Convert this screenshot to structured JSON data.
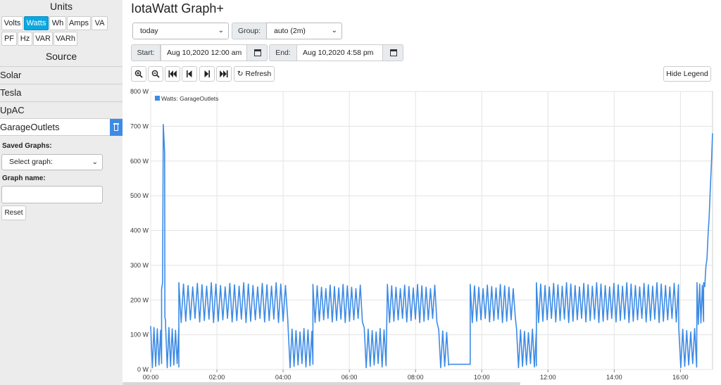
{
  "sidebar": {
    "units_title": "Units",
    "units": [
      {
        "label": "Volts",
        "active": false
      },
      {
        "label": "Watts",
        "active": true
      },
      {
        "label": "Wh",
        "active": false
      },
      {
        "label": "Amps",
        "active": false
      },
      {
        "label": "VA",
        "active": false
      },
      {
        "label": "PF",
        "active": false
      },
      {
        "label": "Hz",
        "active": false
      },
      {
        "label": "VAR",
        "active": false
      },
      {
        "label": "VARh",
        "active": false
      }
    ],
    "source_title": "Source",
    "sources": [
      {
        "label": "Solar",
        "selected": false
      },
      {
        "label": "Tesla",
        "selected": false
      },
      {
        "label": "UpAC",
        "selected": false
      },
      {
        "label": "GarageOutlets",
        "selected": true
      }
    ],
    "saved_graphs_label": "Saved Graphs:",
    "saved_graphs_value": "Select graph:",
    "graph_name_label": "Graph name:",
    "graph_name_value": "",
    "reset_label": "Reset"
  },
  "header": {
    "title": "IotaWatt Graph+",
    "period_value": "today",
    "group_label": "Group:",
    "group_value": "auto (2m)",
    "start_label": "Start:",
    "start_value": "Aug 10,2020 12:00 am",
    "end_label": "End:",
    "end_value": "Aug 10,2020 4:58 pm"
  },
  "toolbar": {
    "zoom_in_icon": "zoom-in-icon",
    "zoom_out_icon": "zoom-out-icon",
    "first_icon": "skip-to-start-icon",
    "prev_icon": "step-back-icon",
    "next_icon": "step-forward-icon",
    "last_icon": "skip-to-end-icon",
    "refresh_label": "Refresh",
    "hide_legend_label": "Hide Legend"
  },
  "colors": {
    "accent": "#0ba7e0",
    "series": "#3d8be6",
    "grid": "#e3e3e3"
  },
  "chart_data": {
    "type": "line",
    "legend_placement": "top-left",
    "grid": true,
    "xlabel": "",
    "ylabel": "",
    "ylim": [
      0,
      800
    ],
    "xlim": [
      0,
      16.97
    ],
    "x_ticks": [
      "00:00",
      "02:00",
      "04:00",
      "06:00",
      "08:00",
      "10:00",
      "12:00",
      "14:00",
      "16:00"
    ],
    "y_ticks": [
      "0 W",
      "100 W",
      "200 W",
      "300 W",
      "400 W",
      "500 W",
      "600 W",
      "700 W",
      "800 W"
    ],
    "series": [
      {
        "name": "Watts: GarageOutlets",
        "color": "#3d8be6",
        "segments": [
          {
            "from": 0.0,
            "to": 0.33,
            "pattern": "cycle",
            "low": 5,
            "high": 125,
            "period": 0.1
          },
          {
            "from": 0.33,
            "to": 0.45,
            "pattern": "spike",
            "low": 230,
            "high": 705
          },
          {
            "from": 0.45,
            "to": 0.85,
            "pattern": "cycle",
            "low": 5,
            "high": 125,
            "period": 0.1
          },
          {
            "from": 0.85,
            "to": 4.15,
            "pattern": "cycle",
            "low": 135,
            "high": 250,
            "period": 0.14
          },
          {
            "from": 4.15,
            "to": 4.9,
            "pattern": "cycle",
            "low": 5,
            "high": 120,
            "period": 0.12
          },
          {
            "from": 4.9,
            "to": 6.45,
            "pattern": "cycle",
            "low": 135,
            "high": 245,
            "period": 0.13
          },
          {
            "from": 6.45,
            "to": 7.15,
            "pattern": "cycle",
            "low": 5,
            "high": 120,
            "period": 0.12
          },
          {
            "from": 7.15,
            "to": 8.7,
            "pattern": "cycle",
            "low": 135,
            "high": 245,
            "period": 0.13
          },
          {
            "from": 8.7,
            "to": 9.0,
            "pattern": "cycle",
            "low": 5,
            "high": 115,
            "period": 0.12
          },
          {
            "from": 9.0,
            "to": 9.65,
            "pattern": "flat",
            "value": 15
          },
          {
            "from": 9.65,
            "to": 11.05,
            "pattern": "cycle",
            "low": 135,
            "high": 245,
            "period": 0.13
          },
          {
            "from": 11.05,
            "to": 11.65,
            "pattern": "cycle",
            "low": 5,
            "high": 118,
            "period": 0.12
          },
          {
            "from": 11.65,
            "to": 15.95,
            "pattern": "cycle",
            "low": 135,
            "high": 250,
            "period": 0.13
          },
          {
            "from": 15.95,
            "to": 16.5,
            "pattern": "cycle",
            "low": 5,
            "high": 120,
            "period": 0.12
          },
          {
            "from": 16.5,
            "to": 16.7,
            "pattern": "cycle",
            "low": 130,
            "high": 250,
            "period": 0.08
          },
          {
            "from": 16.7,
            "to": 16.97,
            "pattern": "ramp",
            "low": 240,
            "high": 680
          }
        ]
      }
    ]
  }
}
